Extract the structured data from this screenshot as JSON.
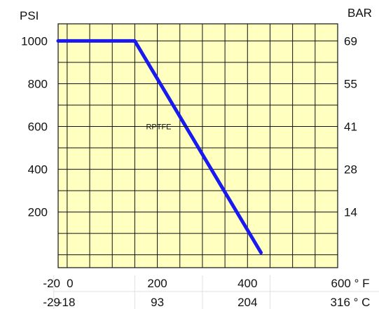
{
  "chart_data": {
    "type": "line",
    "title": "",
    "y_unit_left": "PSI",
    "y_unit_right": "BAR",
    "y_ticks": [
      200,
      400,
      600,
      800,
      1000
    ],
    "y_tick_labels_right": [
      "14",
      "28",
      "41",
      "55",
      "69"
    ],
    "ylim": [
      -60,
      1080
    ],
    "x_ticks_f": [
      -20,
      0,
      200,
      400,
      600
    ],
    "x_tick_labels_f": [
      "-20",
      "0",
      "200",
      "400",
      "600 ° F"
    ],
    "x_tick_labels_c": [
      "-29",
      "-18",
      "93",
      "204",
      "316 ° C"
    ],
    "xlim": [
      -20,
      600
    ],
    "grid": true,
    "series": [
      {
        "name": "RPTFE",
        "color": "#1a1aee",
        "x": [
          -20,
          150,
          430
        ],
        "y": [
          1000,
          1000,
          10
        ]
      }
    ],
    "annotations": [
      {
        "text": "RPTFE",
        "x": 290,
        "y": 600
      }
    ],
    "colors": {
      "plot_background": "#ffffc0",
      "grid": "#111111"
    }
  }
}
